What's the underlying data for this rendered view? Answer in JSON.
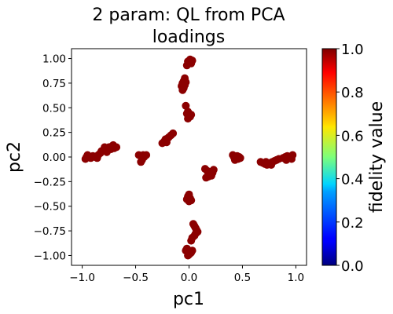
{
  "chart_data": {
    "type": "scatter",
    "title_lines": [
      "2 param:  QL from PCA",
      "loadings"
    ],
    "xlabel": "pc1",
    "ylabel": "pc2",
    "xlim": [
      -1.1,
      1.1
    ],
    "ylim": [
      -1.1,
      1.1
    ],
    "xticks": [
      -1.0,
      -0.5,
      0.0,
      0.5,
      1.0
    ],
    "xtick_labels": [
      "−1.0",
      "−0.5",
      "0.0",
      "0.5",
      "1.0"
    ],
    "yticks": [
      1.0,
      0.75,
      0.5,
      0.25,
      0.0,
      -0.25,
      -0.5,
      -0.75,
      -1.0
    ],
    "ytick_labels": [
      "1.00",
      "0.75",
      "0.50",
      "0.25",
      "0.00",
      "−0.25",
      "−0.50",
      "−0.75",
      "−1.00"
    ],
    "grid": false,
    "colorbar": {
      "label": "fidelity value",
      "range": [
        0.0,
        1.0
      ],
      "ticks": [
        1.0,
        0.8,
        0.6,
        0.4,
        0.2,
        0.0
      ],
      "tick_labels": [
        "1.0",
        "0.8",
        "0.6",
        "0.4",
        "0.2",
        "0.0"
      ],
      "colormap": "jet"
    },
    "point_color": "#8b0000",
    "points": [
      [
        -0.96,
        0.0
      ],
      [
        -0.95,
        0.02
      ],
      [
        -0.93,
        0.0
      ],
      [
        -0.97,
        -0.02
      ],
      [
        -0.92,
        -0.01
      ],
      [
        -0.9,
        0.01
      ],
      [
        -0.88,
        0.0
      ],
      [
        -0.86,
        -0.01
      ],
      [
        -0.85,
        0.02
      ],
      [
        -0.83,
        0.04
      ],
      [
        -0.82,
        0.06
      ],
      [
        -0.8,
        0.07
      ],
      [
        -0.78,
        0.08
      ],
      [
        -0.76,
        0.09
      ],
      [
        -0.75,
        0.1
      ],
      [
        -0.73,
        0.08
      ],
      [
        -0.72,
        0.11
      ],
      [
        -0.7,
        0.09
      ],
      [
        -0.68,
        0.1
      ],
      [
        -0.71,
        0.12
      ],
      [
        -0.77,
        0.05
      ],
      [
        -0.79,
        0.1
      ],
      [
        -0.47,
        0.02
      ],
      [
        -0.45,
        0.01
      ],
      [
        -0.43,
        0.02
      ],
      [
        -0.42,
        0.0
      ],
      [
        -0.44,
        -0.03
      ],
      [
        -0.45,
        -0.05
      ],
      [
        -0.4,
        0.02
      ],
      [
        -0.25,
        0.14
      ],
      [
        -0.23,
        0.16
      ],
      [
        -0.22,
        0.18
      ],
      [
        -0.2,
        0.19
      ],
      [
        -0.19,
        0.2
      ],
      [
        -0.17,
        0.22
      ],
      [
        -0.15,
        0.24
      ],
      [
        -0.21,
        0.15
      ],
      [
        0.0,
        0.96
      ],
      [
        0.01,
        0.99
      ],
      [
        -0.01,
        0.97
      ],
      [
        0.02,
        0.95
      ],
      [
        0.03,
        0.98
      ],
      [
        -0.02,
        0.93
      ],
      [
        -0.04,
        0.8
      ],
      [
        -0.05,
        0.77
      ],
      [
        -0.06,
        0.75
      ],
      [
        -0.07,
        0.72
      ],
      [
        -0.05,
        0.7
      ],
      [
        -0.04,
        0.73
      ],
      [
        -0.03,
        0.76
      ],
      [
        -0.06,
        0.68
      ],
      [
        -0.03,
        0.52
      ],
      [
        -0.01,
        0.46
      ],
      [
        -0.02,
        0.44
      ],
      [
        0.0,
        0.42
      ],
      [
        0.01,
        0.41
      ],
      [
        0.02,
        0.43
      ],
      [
        -0.01,
        0.39
      ],
      [
        0.42,
        0.0
      ],
      [
        0.44,
        -0.01
      ],
      [
        0.46,
        -0.02
      ],
      [
        0.45,
        0.01
      ],
      [
        0.47,
        0.0
      ],
      [
        0.43,
        -0.03
      ],
      [
        0.48,
        -0.01
      ],
      [
        0.41,
        0.02
      ],
      [
        0.15,
        -0.12
      ],
      [
        0.17,
        -0.14
      ],
      [
        0.19,
        -0.15
      ],
      [
        0.2,
        -0.17
      ],
      [
        0.21,
        -0.19
      ],
      [
        0.18,
        -0.2
      ],
      [
        0.16,
        -0.21
      ],
      [
        0.22,
        -0.16
      ],
      [
        0.23,
        -0.13
      ],
      [
        -0.01,
        -0.4
      ],
      [
        0.01,
        -0.42
      ],
      [
        0.0,
        -0.45
      ],
      [
        0.02,
        -0.44
      ],
      [
        -0.02,
        -0.43
      ],
      [
        0.0,
        -0.38
      ],
      [
        0.04,
        -0.68
      ],
      [
        0.05,
        -0.7
      ],
      [
        0.06,
        -0.72
      ],
      [
        0.07,
        -0.74
      ],
      [
        0.08,
        -0.76
      ],
      [
        0.05,
        -0.8
      ],
      [
        0.03,
        -0.82
      ],
      [
        0.02,
        -0.85
      ],
      [
        0.06,
        -0.78
      ],
      [
        -0.02,
        -0.93
      ],
      [
        0.0,
        -0.96
      ],
      [
        0.01,
        -0.98
      ],
      [
        -0.01,
        -1.0
      ],
      [
        0.02,
        -0.97
      ],
      [
        0.0,
        -0.99
      ],
      [
        -0.03,
        -0.95
      ],
      [
        0.03,
        -0.95
      ],
      [
        0.67,
        -0.05
      ],
      [
        0.69,
        -0.06
      ],
      [
        0.71,
        -0.07
      ],
      [
        0.73,
        -0.08
      ],
      [
        0.75,
        -0.07
      ],
      [
        0.76,
        -0.06
      ],
      [
        0.78,
        -0.05
      ],
      [
        0.8,
        -0.04
      ],
      [
        0.82,
        -0.03
      ],
      [
        0.84,
        -0.02
      ],
      [
        0.72,
        -0.05
      ],
      [
        0.77,
        -0.08
      ],
      [
        0.88,
        -0.01
      ],
      [
        0.9,
        0.0
      ],
      [
        0.92,
        0.01
      ],
      [
        0.94,
        -0.01
      ],
      [
        0.95,
        0.0
      ],
      [
        0.97,
        0.02
      ],
      [
        0.91,
        -0.03
      ],
      [
        0.96,
        -0.02
      ]
    ]
  }
}
